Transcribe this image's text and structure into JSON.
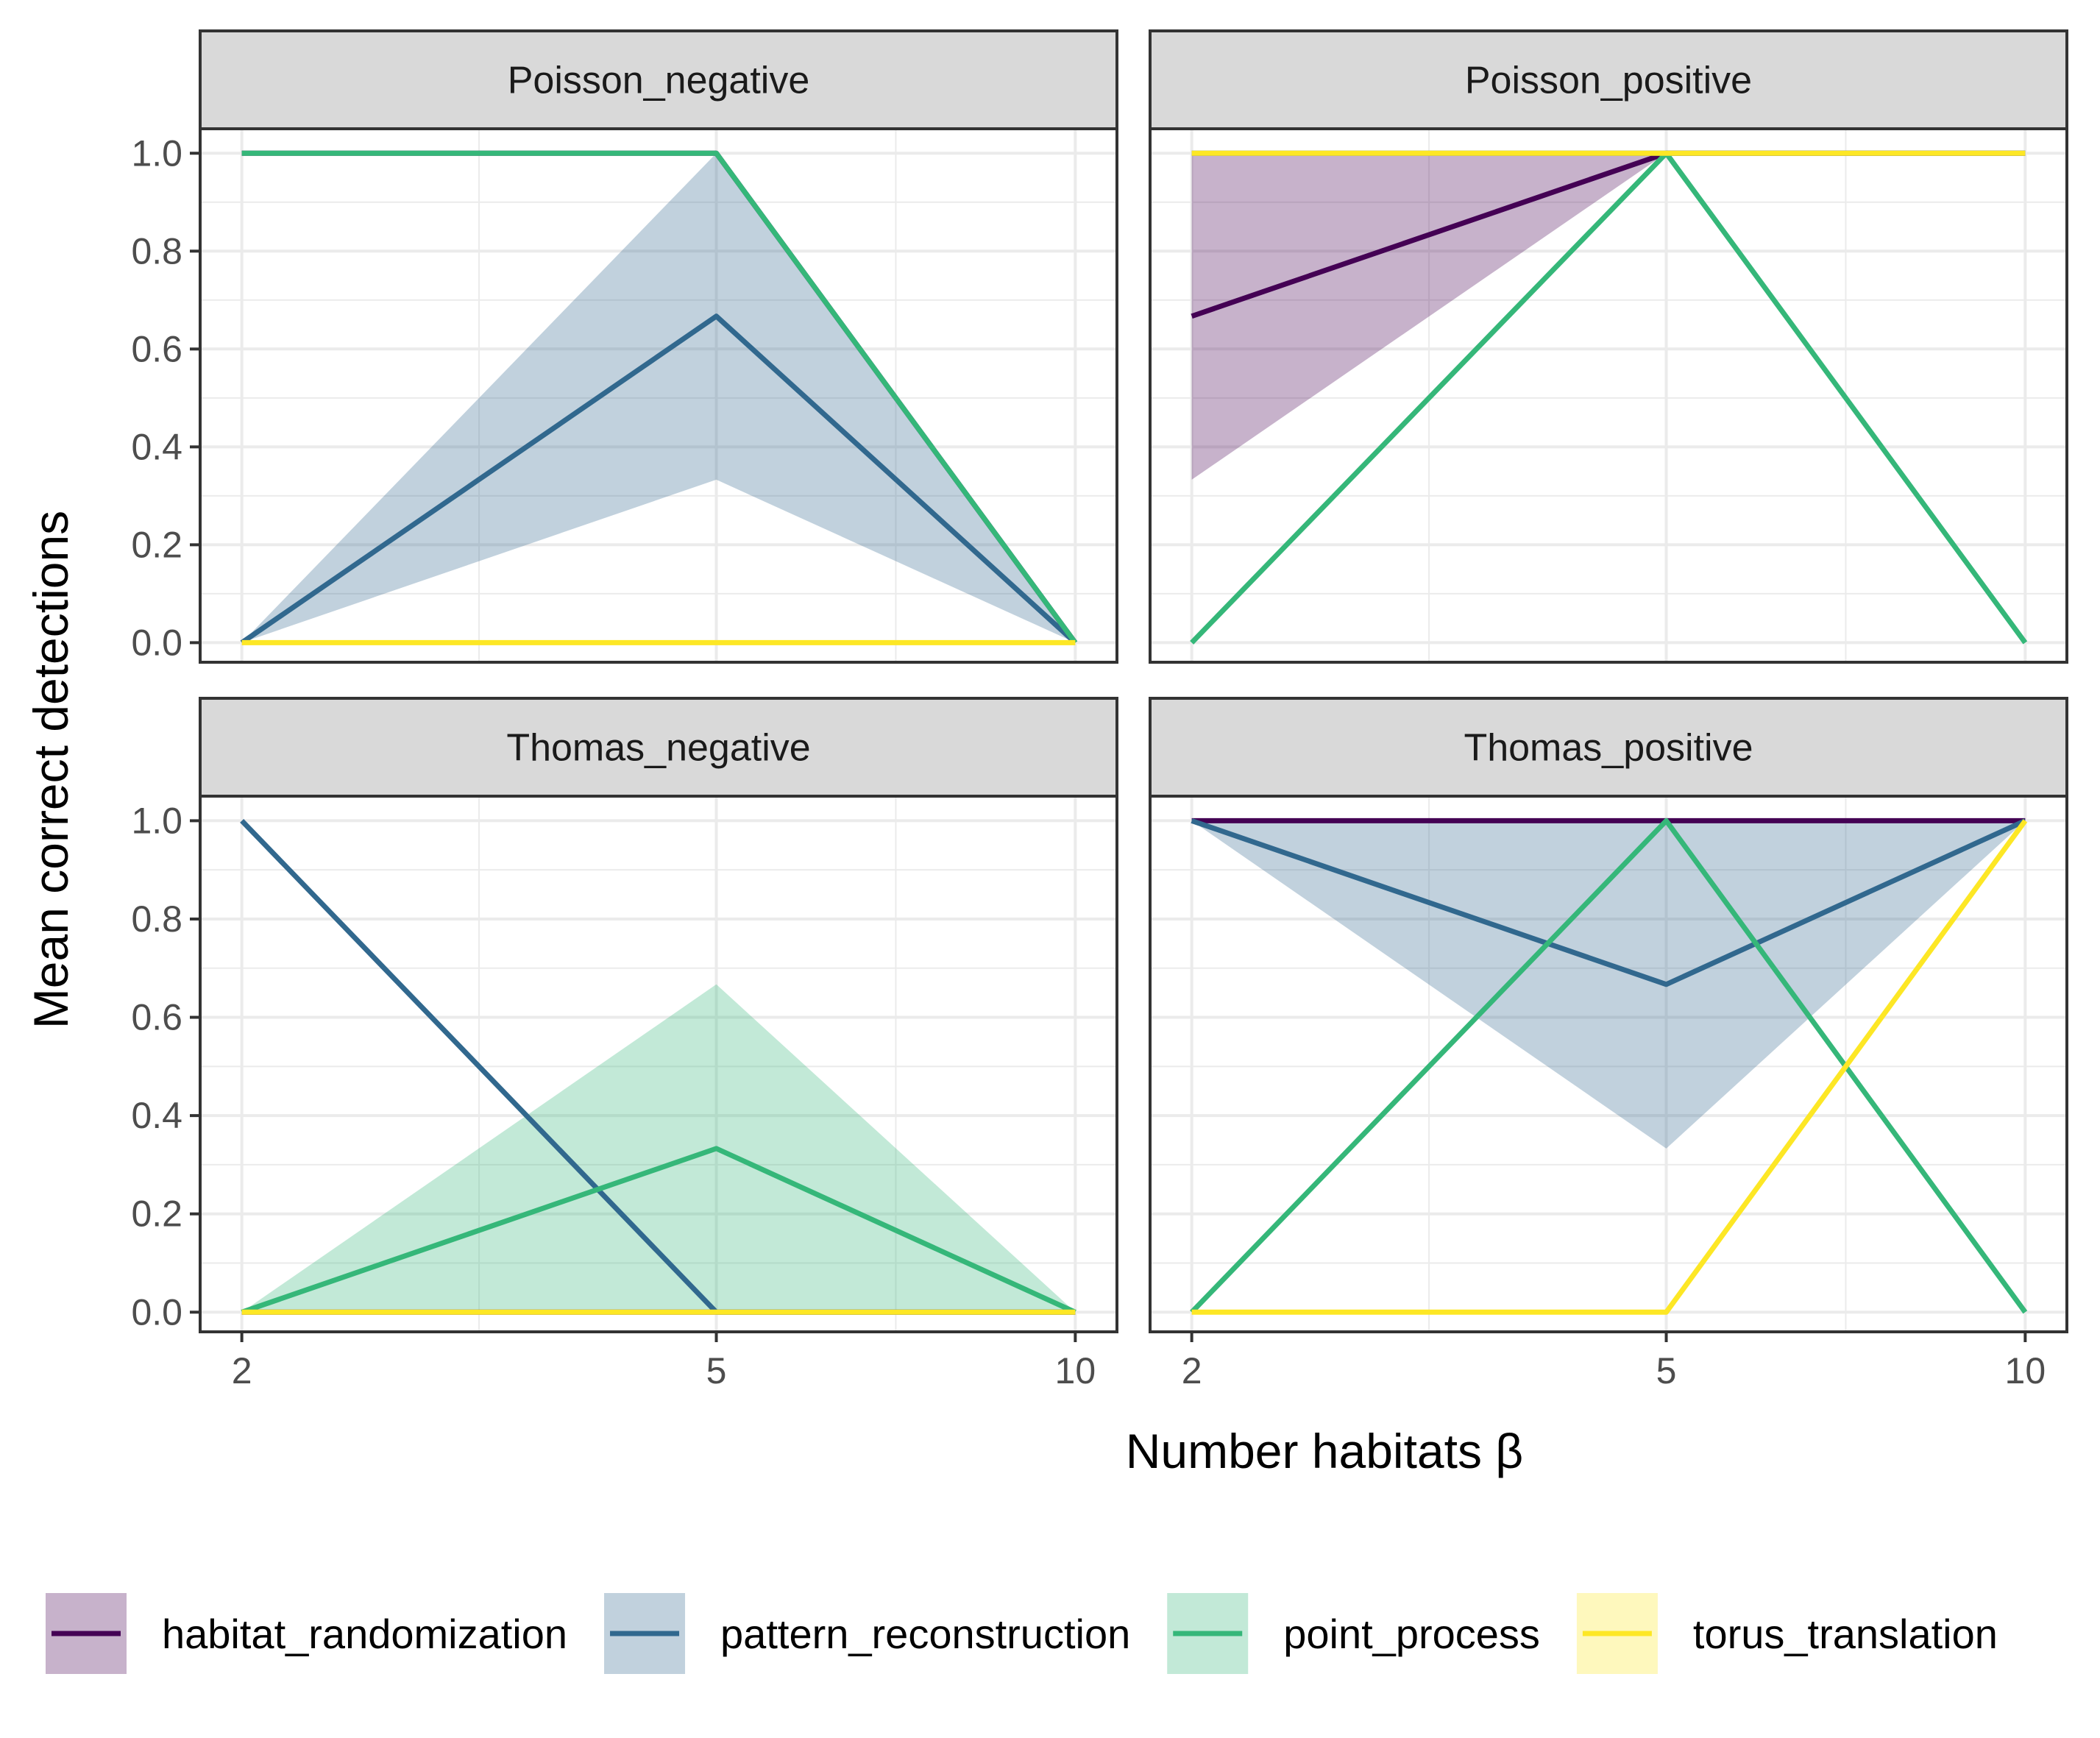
{
  "chart_data": {
    "type": "line",
    "xlabel": "Number habitats β",
    "ylabel": "Mean correct detections",
    "x": [
      2,
      5,
      10
    ],
    "x_ticks": [
      "2",
      "5",
      "10"
    ],
    "y_ticks": [
      "0.0",
      "0.2",
      "0.4",
      "0.6",
      "0.8",
      "1.0"
    ],
    "ylim": [
      -0.04,
      1.05
    ],
    "grid": true,
    "legend_position": "bottom",
    "legend": [
      {
        "name": "habitat_randomization",
        "color": "#440154"
      },
      {
        "name": "pattern_reconstruction",
        "color": "#31688E"
      },
      {
        "name": "point_process",
        "color": "#35B779"
      },
      {
        "name": "torus_translation",
        "color": "#FDE725"
      }
    ],
    "panels": [
      {
        "title": "Poisson_negative",
        "series": [
          {
            "method": "habitat_randomization",
            "mean": [
              1.0,
              1.0,
              0.0
            ],
            "lower": [
              1.0,
              1.0,
              0.0
            ],
            "upper": [
              1.0,
              1.0,
              0.0
            ]
          },
          {
            "method": "pattern_reconstruction",
            "mean": [
              0.0,
              0.667,
              0.0
            ],
            "lower": [
              0.0,
              0.333,
              0.0
            ],
            "upper": [
              0.0,
              1.0,
              0.0
            ]
          },
          {
            "method": "point_process",
            "mean": [
              1.0,
              1.0,
              0.0
            ],
            "lower": [
              1.0,
              1.0,
              0.0
            ],
            "upper": [
              1.0,
              1.0,
              0.0
            ]
          },
          {
            "method": "torus_translation",
            "mean": [
              0.0,
              0.0,
              0.0
            ],
            "lower": [
              0.0,
              0.0,
              0.0
            ],
            "upper": [
              0.0,
              0.0,
              0.0
            ]
          }
        ]
      },
      {
        "title": "Poisson_positive",
        "series": [
          {
            "method": "habitat_randomization",
            "mean": [
              0.667,
              1.0,
              1.0
            ],
            "lower": [
              0.333,
              1.0,
              1.0
            ],
            "upper": [
              1.0,
              1.0,
              1.0
            ]
          },
          {
            "method": "pattern_reconstruction",
            "mean": [
              1.0,
              1.0,
              1.0
            ],
            "lower": [
              1.0,
              1.0,
              1.0
            ],
            "upper": [
              1.0,
              1.0,
              1.0
            ]
          },
          {
            "method": "point_process",
            "mean": [
              0.0,
              1.0,
              0.0
            ],
            "lower": [
              0.0,
              1.0,
              0.0
            ],
            "upper": [
              0.0,
              1.0,
              0.0
            ]
          },
          {
            "method": "torus_translation",
            "mean": [
              1.0,
              1.0,
              1.0
            ],
            "lower": [
              1.0,
              1.0,
              1.0
            ],
            "upper": [
              1.0,
              1.0,
              1.0
            ]
          }
        ]
      },
      {
        "title": "Thomas_negative",
        "series": [
          {
            "method": "habitat_randomization",
            "mean": [
              0.0,
              0.0,
              0.0
            ],
            "lower": [
              0.0,
              0.0,
              0.0
            ],
            "upper": [
              0.0,
              0.0,
              0.0
            ]
          },
          {
            "method": "pattern_reconstruction",
            "mean": [
              1.0,
              0.0,
              0.0
            ],
            "lower": [
              1.0,
              0.0,
              0.0
            ],
            "upper": [
              1.0,
              0.0,
              0.0
            ]
          },
          {
            "method": "point_process",
            "mean": [
              0.0,
              0.333,
              0.0
            ],
            "lower": [
              0.0,
              0.0,
              0.0
            ],
            "upper": [
              0.0,
              0.667,
              0.0
            ]
          },
          {
            "method": "torus_translation",
            "mean": [
              0.0,
              0.0,
              0.0
            ],
            "lower": [
              0.0,
              0.0,
              0.0
            ],
            "upper": [
              0.0,
              0.0,
              0.0
            ]
          }
        ]
      },
      {
        "title": "Thomas_positive",
        "series": [
          {
            "method": "habitat_randomization",
            "mean": [
              1.0,
              1.0,
              1.0
            ],
            "lower": [
              1.0,
              1.0,
              1.0
            ],
            "upper": [
              1.0,
              1.0,
              1.0
            ]
          },
          {
            "method": "pattern_reconstruction",
            "mean": [
              1.0,
              0.667,
              1.0
            ],
            "lower": [
              1.0,
              0.333,
              1.0
            ],
            "upper": [
              1.0,
              1.0,
              1.0
            ]
          },
          {
            "method": "point_process",
            "mean": [
              0.0,
              1.0,
              0.0
            ],
            "lower": [
              0.0,
              1.0,
              0.0
            ],
            "upper": [
              0.0,
              1.0,
              0.0
            ]
          },
          {
            "method": "torus_translation",
            "mean": [
              0.0,
              0.0,
              1.0
            ],
            "lower": [
              0.0,
              0.0,
              1.0
            ],
            "upper": [
              0.0,
              0.0,
              1.0
            ]
          }
        ]
      }
    ]
  }
}
